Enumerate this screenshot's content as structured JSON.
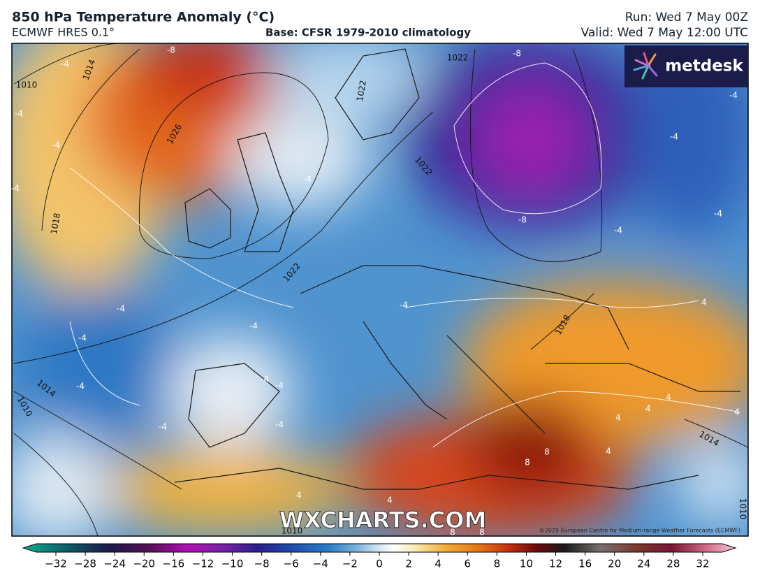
{
  "header": {
    "title": "850 hPa Temperature Anomaly (°C)",
    "model": "ECMWF HRES 0.1°",
    "base": "Base: CFSR 1979-2010 climatology",
    "run": "Run: Wed 7 May 00Z",
    "valid": "Valid: Wed 7 May 12:00 UTC"
  },
  "map": {
    "logo": "metdesk",
    "watermark": "WXCHARTS.COM",
    "copyright": "©2025 European Centre for Medium-range Weather Forecasts (ECMWF)",
    "isobar_labels": [
      "1010",
      "1014",
      "1026",
      "1018",
      "1022",
      "1022",
      "1014",
      "1010",
      "1022",
      "1018",
      "1010",
      "1014",
      "1010",
      "1022"
    ],
    "anomaly_labels": [
      "-8",
      "-4",
      "-4",
      "-4",
      "-4",
      "-4",
      "-8",
      "-4",
      "-4",
      "-8",
      "-4",
      "-4",
      "-4",
      "-4",
      "4",
      "-4",
      "-4",
      "-4",
      "-4",
      "-4",
      "-4",
      "-4",
      "4",
      "4",
      "4",
      "4",
      "8",
      "8",
      "4",
      "4",
      "4",
      "8",
      "8"
    ]
  },
  "colorbar": {
    "ticks": [
      {
        "value": -32,
        "label": "−32"
      },
      {
        "value": -28,
        "label": "−28"
      },
      {
        "value": -24,
        "label": "−24"
      },
      {
        "value": -20,
        "label": "−20"
      },
      {
        "value": -16,
        "label": "−16"
      },
      {
        "value": -12,
        "label": "−12"
      },
      {
        "value": -10,
        "label": "−10"
      },
      {
        "value": -8,
        "label": "−8"
      },
      {
        "value": -6,
        "label": "−6"
      },
      {
        "value": -4,
        "label": "−4"
      },
      {
        "value": -2,
        "label": "−2"
      },
      0,
      2,
      4,
      6,
      8,
      10,
      12,
      16,
      20,
      24,
      28,
      32
    ]
  }
}
